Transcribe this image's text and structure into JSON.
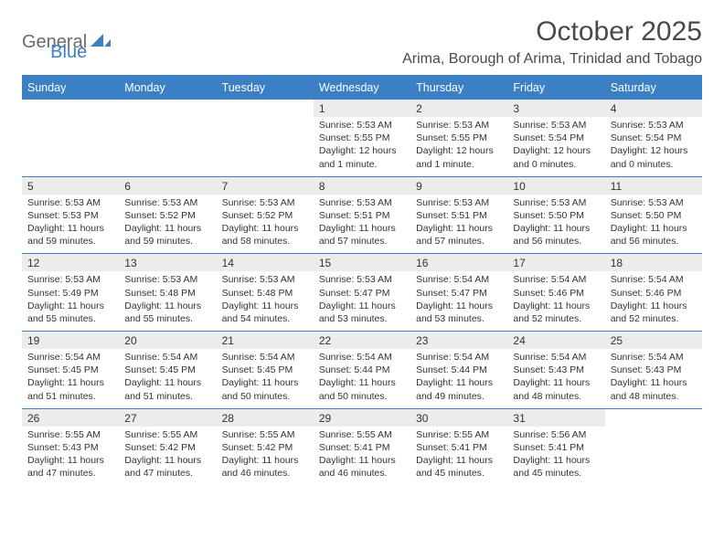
{
  "logo": {
    "text1": "General",
    "text2": "Blue"
  },
  "title": "October 2025",
  "location": "Arima, Borough of Arima, Trinidad and Tobago",
  "colors": {
    "header_bg": "#3b7fc4",
    "header_text": "#ffffff",
    "daynum_bg": "#ececec",
    "border": "#3b7fc4",
    "text": "#333333",
    "page_bg": "#ffffff",
    "logo_gray": "#6b6b6b",
    "logo_blue": "#3b7fc4"
  },
  "day_headers": [
    "Sunday",
    "Monday",
    "Tuesday",
    "Wednesday",
    "Thursday",
    "Friday",
    "Saturday"
  ],
  "weeks": [
    [
      null,
      null,
      null,
      {
        "n": "1",
        "sr": "5:53 AM",
        "ss": "5:55 PM",
        "dl": "12 hours and 1 minute."
      },
      {
        "n": "2",
        "sr": "5:53 AM",
        "ss": "5:55 PM",
        "dl": "12 hours and 1 minute."
      },
      {
        "n": "3",
        "sr": "5:53 AM",
        "ss": "5:54 PM",
        "dl": "12 hours and 0 minutes."
      },
      {
        "n": "4",
        "sr": "5:53 AM",
        "ss": "5:54 PM",
        "dl": "12 hours and 0 minutes."
      }
    ],
    [
      {
        "n": "5",
        "sr": "5:53 AM",
        "ss": "5:53 PM",
        "dl": "11 hours and 59 minutes."
      },
      {
        "n": "6",
        "sr": "5:53 AM",
        "ss": "5:52 PM",
        "dl": "11 hours and 59 minutes."
      },
      {
        "n": "7",
        "sr": "5:53 AM",
        "ss": "5:52 PM",
        "dl": "11 hours and 58 minutes."
      },
      {
        "n": "8",
        "sr": "5:53 AM",
        "ss": "5:51 PM",
        "dl": "11 hours and 57 minutes."
      },
      {
        "n": "9",
        "sr": "5:53 AM",
        "ss": "5:51 PM",
        "dl": "11 hours and 57 minutes."
      },
      {
        "n": "10",
        "sr": "5:53 AM",
        "ss": "5:50 PM",
        "dl": "11 hours and 56 minutes."
      },
      {
        "n": "11",
        "sr": "5:53 AM",
        "ss": "5:50 PM",
        "dl": "11 hours and 56 minutes."
      }
    ],
    [
      {
        "n": "12",
        "sr": "5:53 AM",
        "ss": "5:49 PM",
        "dl": "11 hours and 55 minutes."
      },
      {
        "n": "13",
        "sr": "5:53 AM",
        "ss": "5:48 PM",
        "dl": "11 hours and 55 minutes."
      },
      {
        "n": "14",
        "sr": "5:53 AM",
        "ss": "5:48 PM",
        "dl": "11 hours and 54 minutes."
      },
      {
        "n": "15",
        "sr": "5:53 AM",
        "ss": "5:47 PM",
        "dl": "11 hours and 53 minutes."
      },
      {
        "n": "16",
        "sr": "5:54 AM",
        "ss": "5:47 PM",
        "dl": "11 hours and 53 minutes."
      },
      {
        "n": "17",
        "sr": "5:54 AM",
        "ss": "5:46 PM",
        "dl": "11 hours and 52 minutes."
      },
      {
        "n": "18",
        "sr": "5:54 AM",
        "ss": "5:46 PM",
        "dl": "11 hours and 52 minutes."
      }
    ],
    [
      {
        "n": "19",
        "sr": "5:54 AM",
        "ss": "5:45 PM",
        "dl": "11 hours and 51 minutes."
      },
      {
        "n": "20",
        "sr": "5:54 AM",
        "ss": "5:45 PM",
        "dl": "11 hours and 51 minutes."
      },
      {
        "n": "21",
        "sr": "5:54 AM",
        "ss": "5:45 PM",
        "dl": "11 hours and 50 minutes."
      },
      {
        "n": "22",
        "sr": "5:54 AM",
        "ss": "5:44 PM",
        "dl": "11 hours and 50 minutes."
      },
      {
        "n": "23",
        "sr": "5:54 AM",
        "ss": "5:44 PM",
        "dl": "11 hours and 49 minutes."
      },
      {
        "n": "24",
        "sr": "5:54 AM",
        "ss": "5:43 PM",
        "dl": "11 hours and 48 minutes."
      },
      {
        "n": "25",
        "sr": "5:54 AM",
        "ss": "5:43 PM",
        "dl": "11 hours and 48 minutes."
      }
    ],
    [
      {
        "n": "26",
        "sr": "5:55 AM",
        "ss": "5:43 PM",
        "dl": "11 hours and 47 minutes."
      },
      {
        "n": "27",
        "sr": "5:55 AM",
        "ss": "5:42 PM",
        "dl": "11 hours and 47 minutes."
      },
      {
        "n": "28",
        "sr": "5:55 AM",
        "ss": "5:42 PM",
        "dl": "11 hours and 46 minutes."
      },
      {
        "n": "29",
        "sr": "5:55 AM",
        "ss": "5:41 PM",
        "dl": "11 hours and 46 minutes."
      },
      {
        "n": "30",
        "sr": "5:55 AM",
        "ss": "5:41 PM",
        "dl": "11 hours and 45 minutes."
      },
      {
        "n": "31",
        "sr": "5:56 AM",
        "ss": "5:41 PM",
        "dl": "11 hours and 45 minutes."
      },
      null
    ]
  ],
  "labels": {
    "sunrise": "Sunrise:",
    "sunset": "Sunset:",
    "daylight": "Daylight:"
  }
}
